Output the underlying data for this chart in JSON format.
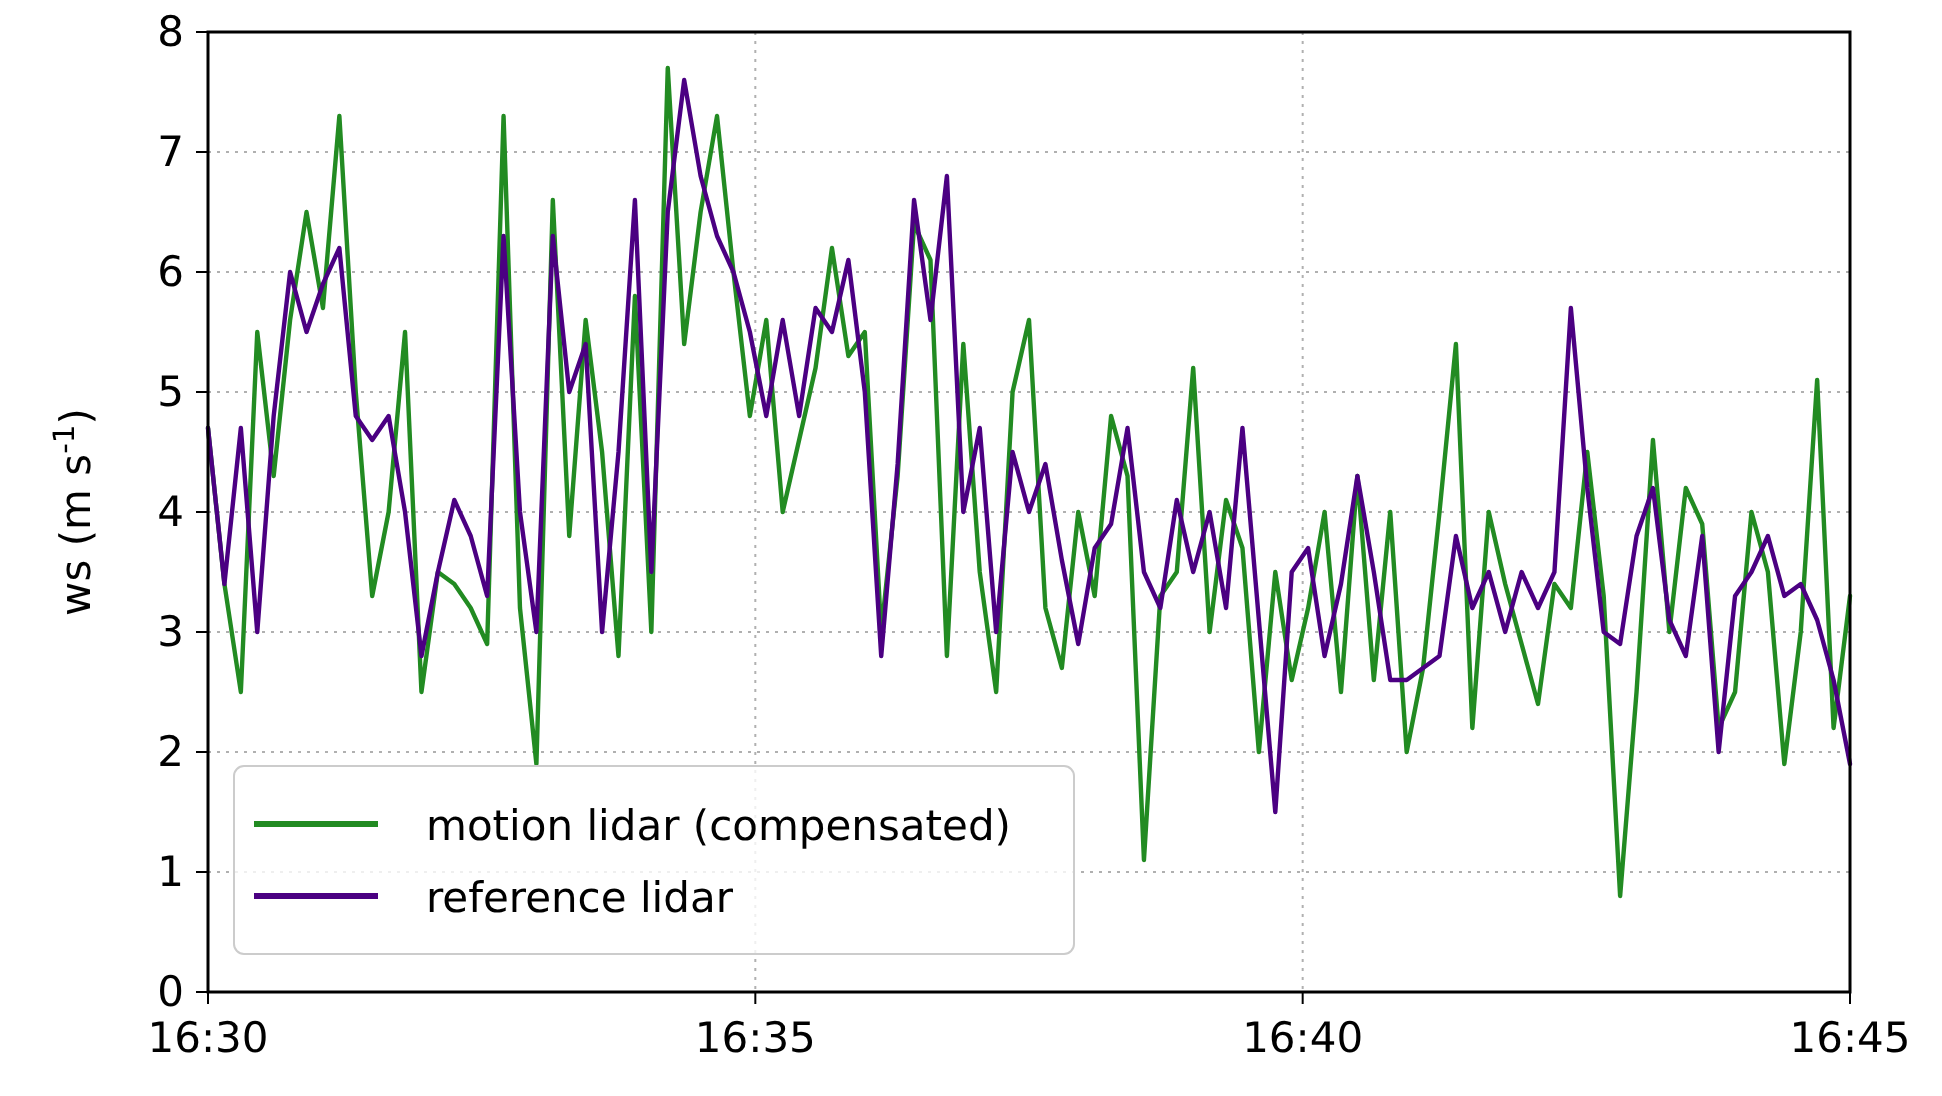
{
  "chart_data": {
    "type": "line",
    "ylabel": "ws (m s$^{-1}$)",
    "x": [
      16.5,
      16.5025,
      16.505,
      16.5075,
      16.51,
      16.5125,
      16.515,
      16.5175,
      16.52,
      16.5225,
      16.525,
      16.5275,
      16.53,
      16.5325,
      16.535,
      16.5375,
      16.54,
      16.5425,
      16.545,
      16.5475,
      16.55,
      16.5525,
      16.555,
      16.5575,
      16.56,
      16.5625,
      16.565,
      16.5675,
      16.57,
      16.5725,
      16.575,
      16.5775,
      16.58,
      16.5825,
      16.585,
      16.5875,
      16.59,
      16.5925,
      16.595,
      16.5975,
      16.6,
      16.6025,
      16.605,
      16.6075,
      16.61,
      16.6125,
      16.615,
      16.6175,
      16.62,
      16.6225,
      16.625,
      16.6275,
      16.63,
      16.6325,
      16.635,
      16.6375,
      16.64,
      16.6425,
      16.645,
      16.6475,
      16.65,
      16.6525,
      16.655,
      16.6575,
      16.66,
      16.6625,
      16.665,
      16.6675,
      16.67,
      16.6725,
      16.675,
      16.6775,
      16.68,
      16.6825,
      16.685,
      16.6875,
      16.69,
      16.6925,
      16.695,
      16.6975,
      16.7,
      16.7025,
      16.705,
      16.7075,
      16.71,
      16.7125,
      16.715,
      16.7175,
      16.72,
      16.7225,
      16.725,
      16.7275,
      16.73,
      16.7325,
      16.735,
      16.7375,
      16.74,
      16.7425,
      16.745,
      16.7475,
      16.75
    ],
    "series": [
      {
        "name": "motion lidar (compensated)",
        "color": "#228b22",
        "values": [
          4.7,
          3.4,
          2.5,
          5.5,
          4.3,
          5.6,
          6.5,
          5.7,
          7.3,
          5.0,
          3.3,
          4.0,
          5.5,
          2.5,
          3.5,
          3.4,
          3.2,
          2.9,
          7.3,
          3.2,
          1.9,
          6.6,
          3.8,
          5.6,
          4.5,
          2.8,
          5.8,
          3.0,
          7.7,
          5.4,
          6.5,
          7.3,
          6.0,
          4.8,
          5.6,
          4.0,
          4.6,
          5.2,
          6.2,
          5.3,
          5.5,
          3.0,
          4.3,
          6.4,
          6.1,
          2.8,
          5.4,
          3.5,
          2.5,
          5.0,
          5.6,
          3.2,
          2.7,
          4.0,
          3.3,
          4.8,
          4.3,
          1.1,
          3.3,
          3.5,
          5.2,
          3.0,
          4.1,
          3.7,
          2.0,
          3.5,
          2.6,
          3.2,
          4.0,
          2.5,
          4.3,
          2.6,
          4.0,
          2.0,
          2.7,
          4.0,
          5.4,
          2.2,
          4.0,
          3.4,
          2.9,
          2.4,
          3.4,
          3.2,
          4.5,
          3.3,
          0.8,
          2.5,
          4.6,
          3.0,
          4.2,
          3.9,
          2.2,
          2.5,
          4.0,
          3.5,
          1.9,
          3.0,
          5.1,
          2.2,
          3.3
        ]
      },
      {
        "name": "reference lidar",
        "color": "#4b0082",
        "values": [
          4.7,
          3.4,
          4.7,
          3.0,
          4.8,
          6.0,
          5.5,
          5.9,
          6.2,
          4.8,
          4.6,
          4.8,
          4.0,
          2.8,
          3.5,
          4.1,
          3.8,
          3.3,
          6.3,
          4.0,
          3.0,
          6.3,
          5.0,
          5.4,
          3.0,
          4.5,
          6.6,
          3.5,
          6.5,
          7.6,
          6.8,
          6.3,
          6.0,
          5.5,
          4.8,
          5.6,
          4.8,
          5.7,
          5.5,
          6.1,
          5.0,
          2.8,
          4.4,
          6.6,
          5.6,
          6.8,
          4.0,
          4.7,
          3.0,
          4.5,
          4.0,
          4.4,
          3.6,
          2.9,
          3.7,
          3.9,
          4.7,
          3.5,
          3.2,
          4.1,
          3.5,
          4.0,
          3.2,
          4.7,
          3.1,
          1.5,
          3.5,
          3.7,
          2.8,
          3.4,
          4.3,
          3.5,
          2.6,
          2.6,
          2.7,
          2.8,
          3.8,
          3.2,
          3.5,
          3.0,
          3.5,
          3.2,
          3.5,
          5.7,
          4.2,
          3.0,
          2.9,
          3.8,
          4.2,
          3.1,
          2.8,
          3.8,
          2.0,
          3.3,
          3.5,
          3.8,
          3.3,
          3.4,
          3.1,
          2.6,
          1.9
        ]
      }
    ],
    "xlim": [
      16.5,
      16.75
    ],
    "xticks": [
      {
        "value": 16.5,
        "label": "16:30"
      },
      {
        "value": 16.583333,
        "label": "16:35"
      },
      {
        "value": 16.666667,
        "label": "16:40"
      },
      {
        "value": 16.75,
        "label": "16:45"
      }
    ],
    "ylim": [
      0,
      8
    ],
    "yticks": [
      0,
      1,
      2,
      3,
      4,
      5,
      6,
      7,
      8
    ],
    "grid": true,
    "legend": "bottom left",
    "marker": "none",
    "line_style": "solid"
  }
}
